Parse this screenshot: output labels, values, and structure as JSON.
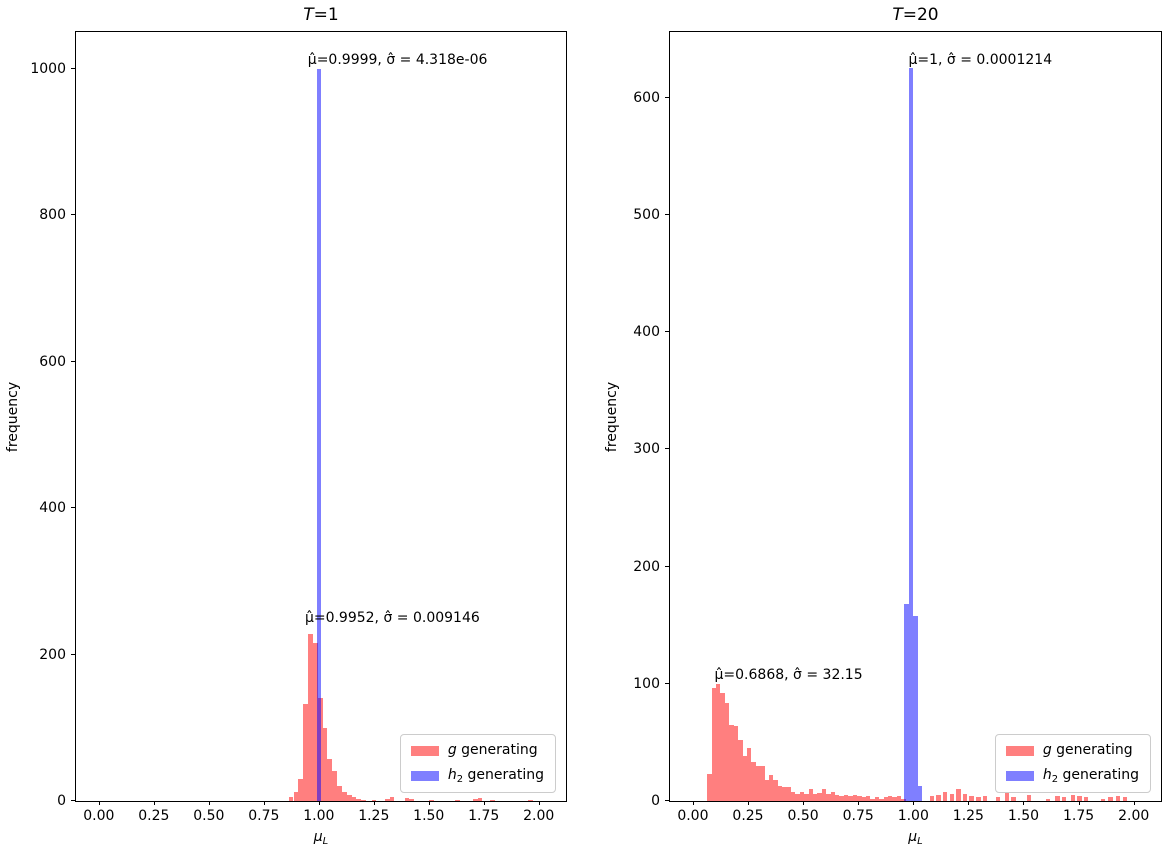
{
  "figure": {
    "background": "#ffffff",
    "ylabel": "frequency",
    "xlabel": {
      "var": "μ",
      "sub": "L"
    },
    "colors": {
      "red_fill": "#ff7f7f",
      "blue_fill": "rgba(0,0,255,0.5)",
      "blue_legend": "#7f7fff",
      "overlap_purple": "#7f3fbf",
      "frame": "#000000",
      "legend_border": "#cccccc"
    },
    "legend": [
      {
        "var": "g",
        "sub": "",
        "rest": " generating",
        "color": "#ff7f7f"
      },
      {
        "var": "h",
        "sub": "2",
        "rest": " generating",
        "color": "#7f7fff"
      }
    ]
  },
  "chart_data": [
    {
      "type": "bar",
      "subtype": "overlaid-histograms",
      "title": {
        "var": "T",
        "rest": "=1",
        "text": "T=1"
      },
      "xlabel": "μ_L",
      "ylabel": "frequency",
      "xlim": [
        -0.104,
        2.124
      ],
      "ylim": [
        0,
        1050
      ],
      "grid": false,
      "legend_position": "lower right",
      "xticks": {
        "values": [
          0.0,
          0.25,
          0.5,
          0.75,
          1.0,
          1.25,
          1.5,
          1.75,
          2.0
        ],
        "labels": [
          "0.00",
          "0.25",
          "0.50",
          "0.75",
          "1.00",
          "1.25",
          "1.50",
          "1.75",
          "2.00"
        ]
      },
      "yticks": {
        "values": [
          0,
          200,
          400,
          600,
          800,
          1000
        ],
        "labels": [
          "0",
          "200",
          "400",
          "600",
          "800",
          "1000"
        ]
      },
      "series": [
        {
          "name": "g generating",
          "color": "#ff7f7f",
          "bin_width": 0.022,
          "bars": [
            [
              0.863,
              5
            ],
            [
              0.885,
              12
            ],
            [
              0.907,
              30
            ],
            [
              0.929,
              132
            ],
            [
              0.951,
              228
            ],
            [
              0.973,
              216
            ],
            [
              0.995,
              140
            ],
            [
              1.017,
              100
            ],
            [
              1.039,
              57
            ],
            [
              1.061,
              41
            ],
            [
              1.083,
              20
            ],
            [
              1.105,
              12
            ],
            [
              1.127,
              8
            ],
            [
              1.149,
              5
            ],
            [
              1.171,
              3
            ],
            [
              1.193,
              2
            ],
            [
              1.24,
              2
            ],
            [
              1.3,
              3
            ],
            [
              1.322,
              5
            ],
            [
              1.39,
              4
            ],
            [
              1.412,
              3
            ],
            [
              1.5,
              2
            ],
            [
              1.62,
              2
            ],
            [
              1.7,
              3
            ],
            [
              1.722,
              4
            ],
            [
              1.78,
              2
            ],
            [
              1.95,
              2
            ]
          ]
        },
        {
          "name": "h2 generating",
          "color": "rgba(0,0,255,0.5)",
          "bin_width": 0.02,
          "bars": [
            [
              0.99,
              1000
            ]
          ]
        }
      ],
      "annotations": [
        {
          "x": 0.95,
          "y": 1000,
          "text": "μ̂=0.9999, σ̂ = 4.318e-06",
          "series": "h2 generating",
          "mu_hat": "0.9999",
          "sigma_hat": "4.318e-06"
        },
        {
          "x": 0.937,
          "y": 238,
          "text": "μ̂=0.9952, σ̂ = 0.009146",
          "series": "g generating",
          "mu_hat": "0.9952",
          "sigma_hat": "0.009146"
        }
      ]
    },
    {
      "type": "bar",
      "subtype": "overlaid-histograms",
      "title": {
        "var": "T",
        "rest": "=20",
        "text": "T=20"
      },
      "xlabel": "μ_L",
      "ylabel": "frequency",
      "xlim": [
        -0.104,
        2.124
      ],
      "ylim": [
        0,
        656
      ],
      "grid": false,
      "legend_position": "lower right",
      "xticks": {
        "values": [
          0.0,
          0.25,
          0.5,
          0.75,
          1.0,
          1.25,
          1.5,
          1.75,
          2.0
        ],
        "labels": [
          "0.00",
          "0.25",
          "0.50",
          "0.75",
          "1.00",
          "1.25",
          "1.50",
          "1.75",
          "2.00"
        ]
      },
      "yticks": {
        "values": [
          0,
          100,
          200,
          300,
          400,
          500,
          600
        ],
        "labels": [
          "0",
          "100",
          "200",
          "300",
          "400",
          "500",
          "600"
        ]
      },
      "series": [
        {
          "name": "g generating",
          "color": "#ff7f7f",
          "bin_width": 0.02,
          "bars": [
            [
              0.065,
              23
            ],
            [
              0.085,
              96
            ],
            [
              0.105,
              100
            ],
            [
              0.125,
              92
            ],
            [
              0.145,
              84
            ],
            [
              0.165,
              65
            ],
            [
              0.185,
              64
            ],
            [
              0.205,
              52
            ],
            [
              0.225,
              38
            ],
            [
              0.245,
              45
            ],
            [
              0.265,
              33
            ],
            [
              0.285,
              30
            ],
            [
              0.305,
              30
            ],
            [
              0.325,
              18
            ],
            [
              0.345,
              22
            ],
            [
              0.365,
              18
            ],
            [
              0.385,
              13
            ],
            [
              0.405,
              12
            ],
            [
              0.425,
              12
            ],
            [
              0.445,
              8
            ],
            [
              0.465,
              6
            ],
            [
              0.485,
              8
            ],
            [
              0.505,
              6
            ],
            [
              0.525,
              10
            ],
            [
              0.545,
              6
            ],
            [
              0.565,
              7
            ],
            [
              0.585,
              10
            ],
            [
              0.605,
              6
            ],
            [
              0.625,
              8
            ],
            [
              0.645,
              5
            ],
            [
              0.665,
              4
            ],
            [
              0.685,
              5
            ],
            [
              0.705,
              4
            ],
            [
              0.725,
              5
            ],
            [
              0.745,
              4
            ],
            [
              0.765,
              3
            ],
            [
              0.785,
              4
            ],
            [
              0.805,
              2
            ],
            [
              0.825,
              3
            ],
            [
              0.845,
              2
            ],
            [
              0.865,
              3
            ],
            [
              0.885,
              4
            ],
            [
              0.905,
              3
            ],
            [
              0.925,
              4
            ],
            [
              0.945,
              2
            ],
            [
              1.075,
              4
            ],
            [
              1.105,
              5
            ],
            [
              1.135,
              8
            ],
            [
              1.165,
              6
            ],
            [
              1.195,
              10
            ],
            [
              1.225,
              6
            ],
            [
              1.255,
              4
            ],
            [
              1.285,
              3
            ],
            [
              1.315,
              4
            ],
            [
              1.375,
              3
            ],
            [
              1.415,
              8
            ],
            [
              1.445,
              3
            ],
            [
              1.515,
              5
            ],
            [
              1.6,
              2
            ],
            [
              1.645,
              4
            ],
            [
              1.675,
              3
            ],
            [
              1.715,
              5
            ],
            [
              1.745,
              4
            ],
            [
              1.775,
              3
            ],
            [
              1.85,
              2
            ],
            [
              1.885,
              3
            ],
            [
              1.92,
              4
            ],
            [
              1.95,
              3
            ]
          ]
        },
        {
          "name": "h2 generating",
          "color": "rgba(0,0,255,0.5)",
          "bin_width": 0.02,
          "bars": [
            [
              0.96,
              168
            ],
            [
              0.98,
              625
            ],
            [
              1.0,
              158
            ],
            [
              1.02,
              13
            ]
          ]
        }
      ],
      "annotations": [
        {
          "x": 0.978,
          "y": 625,
          "text": "μ̂=1, σ̂ = 0.0001214",
          "series": "h2 generating",
          "mu_hat": "1",
          "sigma_hat": "0.0001214"
        },
        {
          "x": 0.098,
          "y": 100,
          "text": "μ̂=0.6868, σ̂ = 32.15",
          "series": "g generating",
          "mu_hat": "0.6868",
          "sigma_hat": "32.15"
        }
      ]
    }
  ]
}
